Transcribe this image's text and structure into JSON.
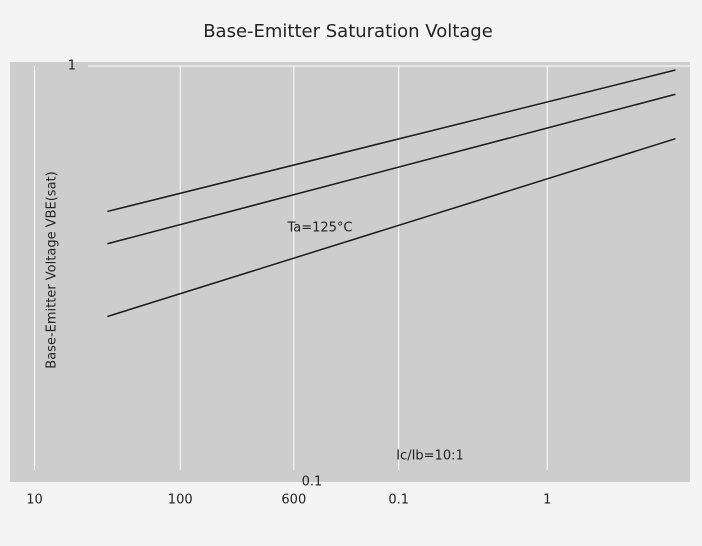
{
  "chart_data": {
    "type": "line",
    "title": "Base-Emitter Saturation Voltage",
    "y_label": "Base-Emitter Voltage VBE(sat)",
    "annotations": [
      "Ta=125°C",
      "Ic/Ib=10:1",
      "0.1"
    ],
    "x": [
      0.5,
      4.4
    ],
    "series": [
      {
        "color": "#1a1a1a",
        "values": [
          0.64,
          0.99
        ]
      },
      {
        "color": "#1a1a1a",
        "values": [
          0.56,
          0.93
        ]
      },
      {
        "color": "#1a1a1a",
        "values": [
          0.38,
          0.82
        ]
      }
    ],
    "xlim": [
      -0.1,
      4.5
    ],
    "xticks": [
      {
        "value": 0,
        "label": "10"
      },
      {
        "value": 1,
        "label": "100"
      },
      {
        "value": 1.78,
        "label": "600"
      },
      {
        "value": 2.5,
        "label": "0.1"
      },
      {
        "value": 3.52,
        "label": "1"
      }
    ],
    "ylim": [
      0,
      1
    ],
    "yticks": [
      1
    ],
    "grid": true
  }
}
